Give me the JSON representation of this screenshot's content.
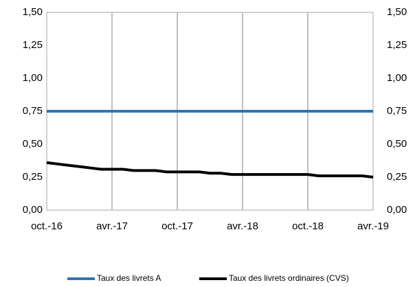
{
  "chart_data": {
    "type": "line",
    "categories": [
      "oct.-16",
      null,
      null,
      null,
      null,
      null,
      "avr.-17",
      null,
      null,
      null,
      null,
      null,
      "oct.-17",
      null,
      null,
      null,
      null,
      null,
      "avr.-18",
      null,
      null,
      null,
      null,
      null,
      "oct.-18",
      null,
      null,
      null,
      null,
      null,
      "avr.-19"
    ],
    "series": [
      {
        "name": "Taux des livrets A",
        "color": "#2e75b6",
        "values": [
          0.75,
          0.75,
          0.75,
          0.75,
          0.75,
          0.75,
          0.75,
          0.75,
          0.75,
          0.75,
          0.75,
          0.75,
          0.75,
          0.75,
          0.75,
          0.75,
          0.75,
          0.75,
          0.75,
          0.75,
          0.75,
          0.75,
          0.75,
          0.75,
          0.75,
          0.75,
          0.75,
          0.75,
          0.75,
          0.75,
          0.75
        ]
      },
      {
        "name": "Taux des livrets ordinaires (CVS)",
        "color": "#000000",
        "values": [
          0.36,
          0.35,
          0.34,
          0.33,
          0.32,
          0.31,
          0.31,
          0.31,
          0.3,
          0.3,
          0.3,
          0.29,
          0.29,
          0.29,
          0.29,
          0.28,
          0.28,
          0.27,
          0.27,
          0.27,
          0.27,
          0.27,
          0.27,
          0.27,
          0.27,
          0.26,
          0.26,
          0.26,
          0.26,
          0.26,
          0.25
        ]
      }
    ],
    "ylim": [
      0,
      1.5
    ],
    "yticks": [
      {
        "value": 0,
        "label": "0,00"
      },
      {
        "value": 0.25,
        "label": "0,25"
      },
      {
        "value": 0.5,
        "label": "0,50"
      },
      {
        "value": 0.75,
        "label": "0,75"
      },
      {
        "value": 1,
        "label": "1,00"
      },
      {
        "value": 1.25,
        "label": "1,25"
      },
      {
        "value": 1.5,
        "label": "1,50"
      }
    ],
    "y2lim": [
      0,
      1.5
    ],
    "y2ticks": [
      {
        "value": 0,
        "label": "0,00"
      },
      {
        "value": 0.25,
        "label": "0,25"
      },
      {
        "value": 0.5,
        "label": "0,50"
      },
      {
        "value": 0.75,
        "label": "0,75"
      },
      {
        "value": 1,
        "label": "1,00"
      },
      {
        "value": 1.25,
        "label": "1,25"
      },
      {
        "value": 1.5,
        "label": "1,50"
      }
    ],
    "xgrid": true,
    "ygrid": false,
    "legend": "bottom"
  }
}
